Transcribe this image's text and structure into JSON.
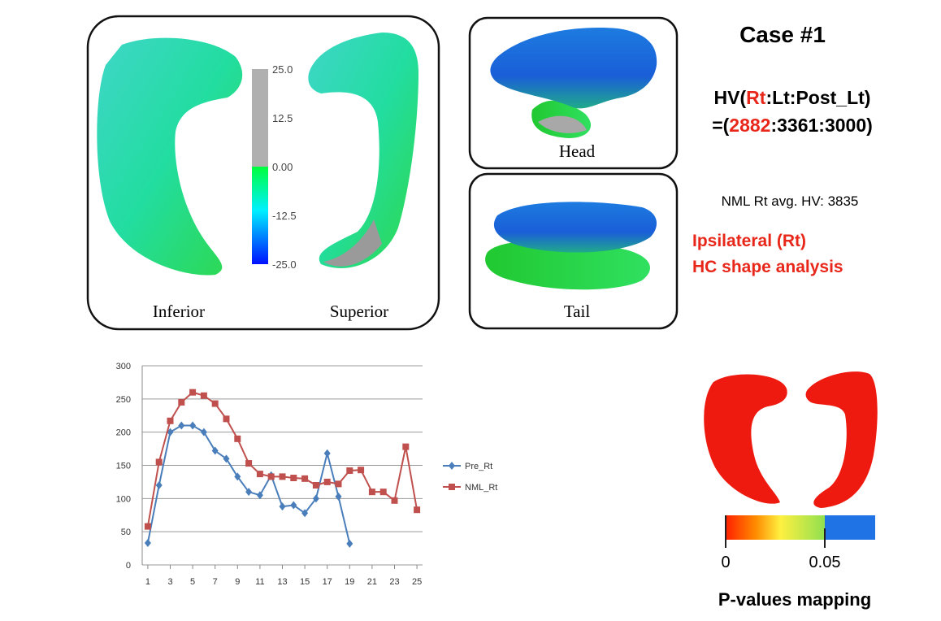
{
  "chart_data": {
    "type": "line",
    "x": [
      1,
      2,
      3,
      4,
      5,
      6,
      7,
      8,
      9,
      10,
      11,
      12,
      13,
      14,
      15,
      16,
      17,
      18,
      19,
      20,
      21,
      22,
      23,
      24,
      25
    ],
    "series": [
      {
        "name": "Pre_Rt",
        "color": "#4a7ebb",
        "marker": "diamond",
        "values": [
          33,
          120,
          200,
          210,
          210,
          200,
          172,
          160,
          133,
          110,
          105,
          135,
          88,
          90,
          78,
          100,
          168,
          103,
          32,
          null,
          null,
          null,
          null,
          null,
          null
        ]
      },
      {
        "name": "NML_Rt",
        "color": "#c0504d",
        "marker": "square",
        "values": [
          58,
          155,
          217,
          245,
          260,
          255,
          243,
          220,
          190,
          153,
          137,
          133,
          133,
          131,
          130,
          120,
          125,
          122,
          142,
          143,
          110,
          110,
          97,
          178,
          83
        ]
      }
    ],
    "xlim": [
      0.5,
      25.5
    ],
    "xticks": [
      1,
      3,
      5,
      7,
      9,
      11,
      13,
      15,
      17,
      19,
      21,
      23,
      25
    ],
    "ylim": [
      0,
      300
    ],
    "yticks": [
      0,
      50,
      100,
      150,
      200,
      250,
      300
    ],
    "grid": true,
    "legend": "right"
  },
  "panels": {
    "inferior": "Inferior",
    "superior": "Superior",
    "head": "Head",
    "tail": "Tail",
    "colorbar": [
      "25.0",
      "12.5",
      "0.00",
      "-12.5",
      "-25.0"
    ]
  },
  "case": {
    "title": "Case #1",
    "hv_label": {
      "prefix": "HV(",
      "highlight": "Rt",
      "rest": ":Lt:Post_Lt)"
    },
    "hv_values": {
      "prefix": "=(",
      "highlight": "2882",
      "rest": ":3361:3000)"
    },
    "normal": "NML Rt avg. HV: 3835",
    "analysis": [
      "Ipsilateral (Rt)",
      "HC shape analysis"
    ]
  },
  "pmap": {
    "scale": [
      "0",
      "0.05"
    ],
    "title": "P-values mapping"
  }
}
